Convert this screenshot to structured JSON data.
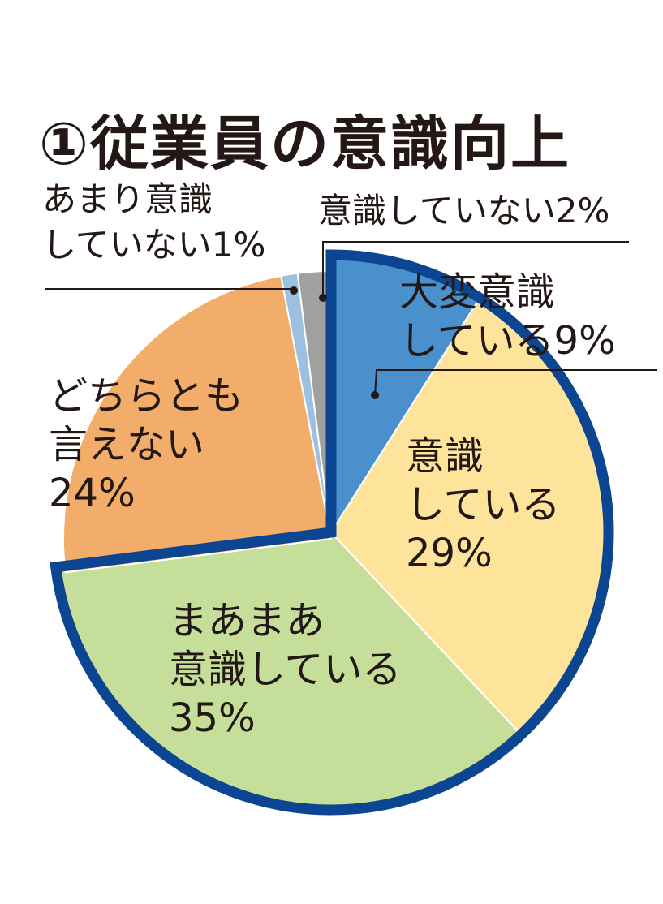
{
  "chart_data": {
    "type": "pie",
    "title": "①従業員の意識向上",
    "slices": [
      {
        "lines": [
          "大変意識",
          "している9%"
        ],
        "value": 9,
        "color": "#4a90cc"
      },
      {
        "lines": [
          "意識",
          "している",
          "29%"
        ],
        "value": 29,
        "color": "#fde49a"
      },
      {
        "lines": [
          "まあまあ",
          "意識している",
          "35%"
        ],
        "value": 35,
        "color": "#c5df9a"
      },
      {
        "lines": [
          "どちらとも",
          "言えない",
          "24%"
        ],
        "value": 24,
        "color": "#f2ad6a"
      },
      {
        "lines": [
          "あまり意識",
          "していない1%"
        ],
        "value": 1,
        "color": "#9cc0e2"
      },
      {
        "lines": [
          "意識していない2%"
        ],
        "value": 2,
        "color": "#9fa0a0"
      }
    ],
    "highlight_color": "#0c4592"
  }
}
